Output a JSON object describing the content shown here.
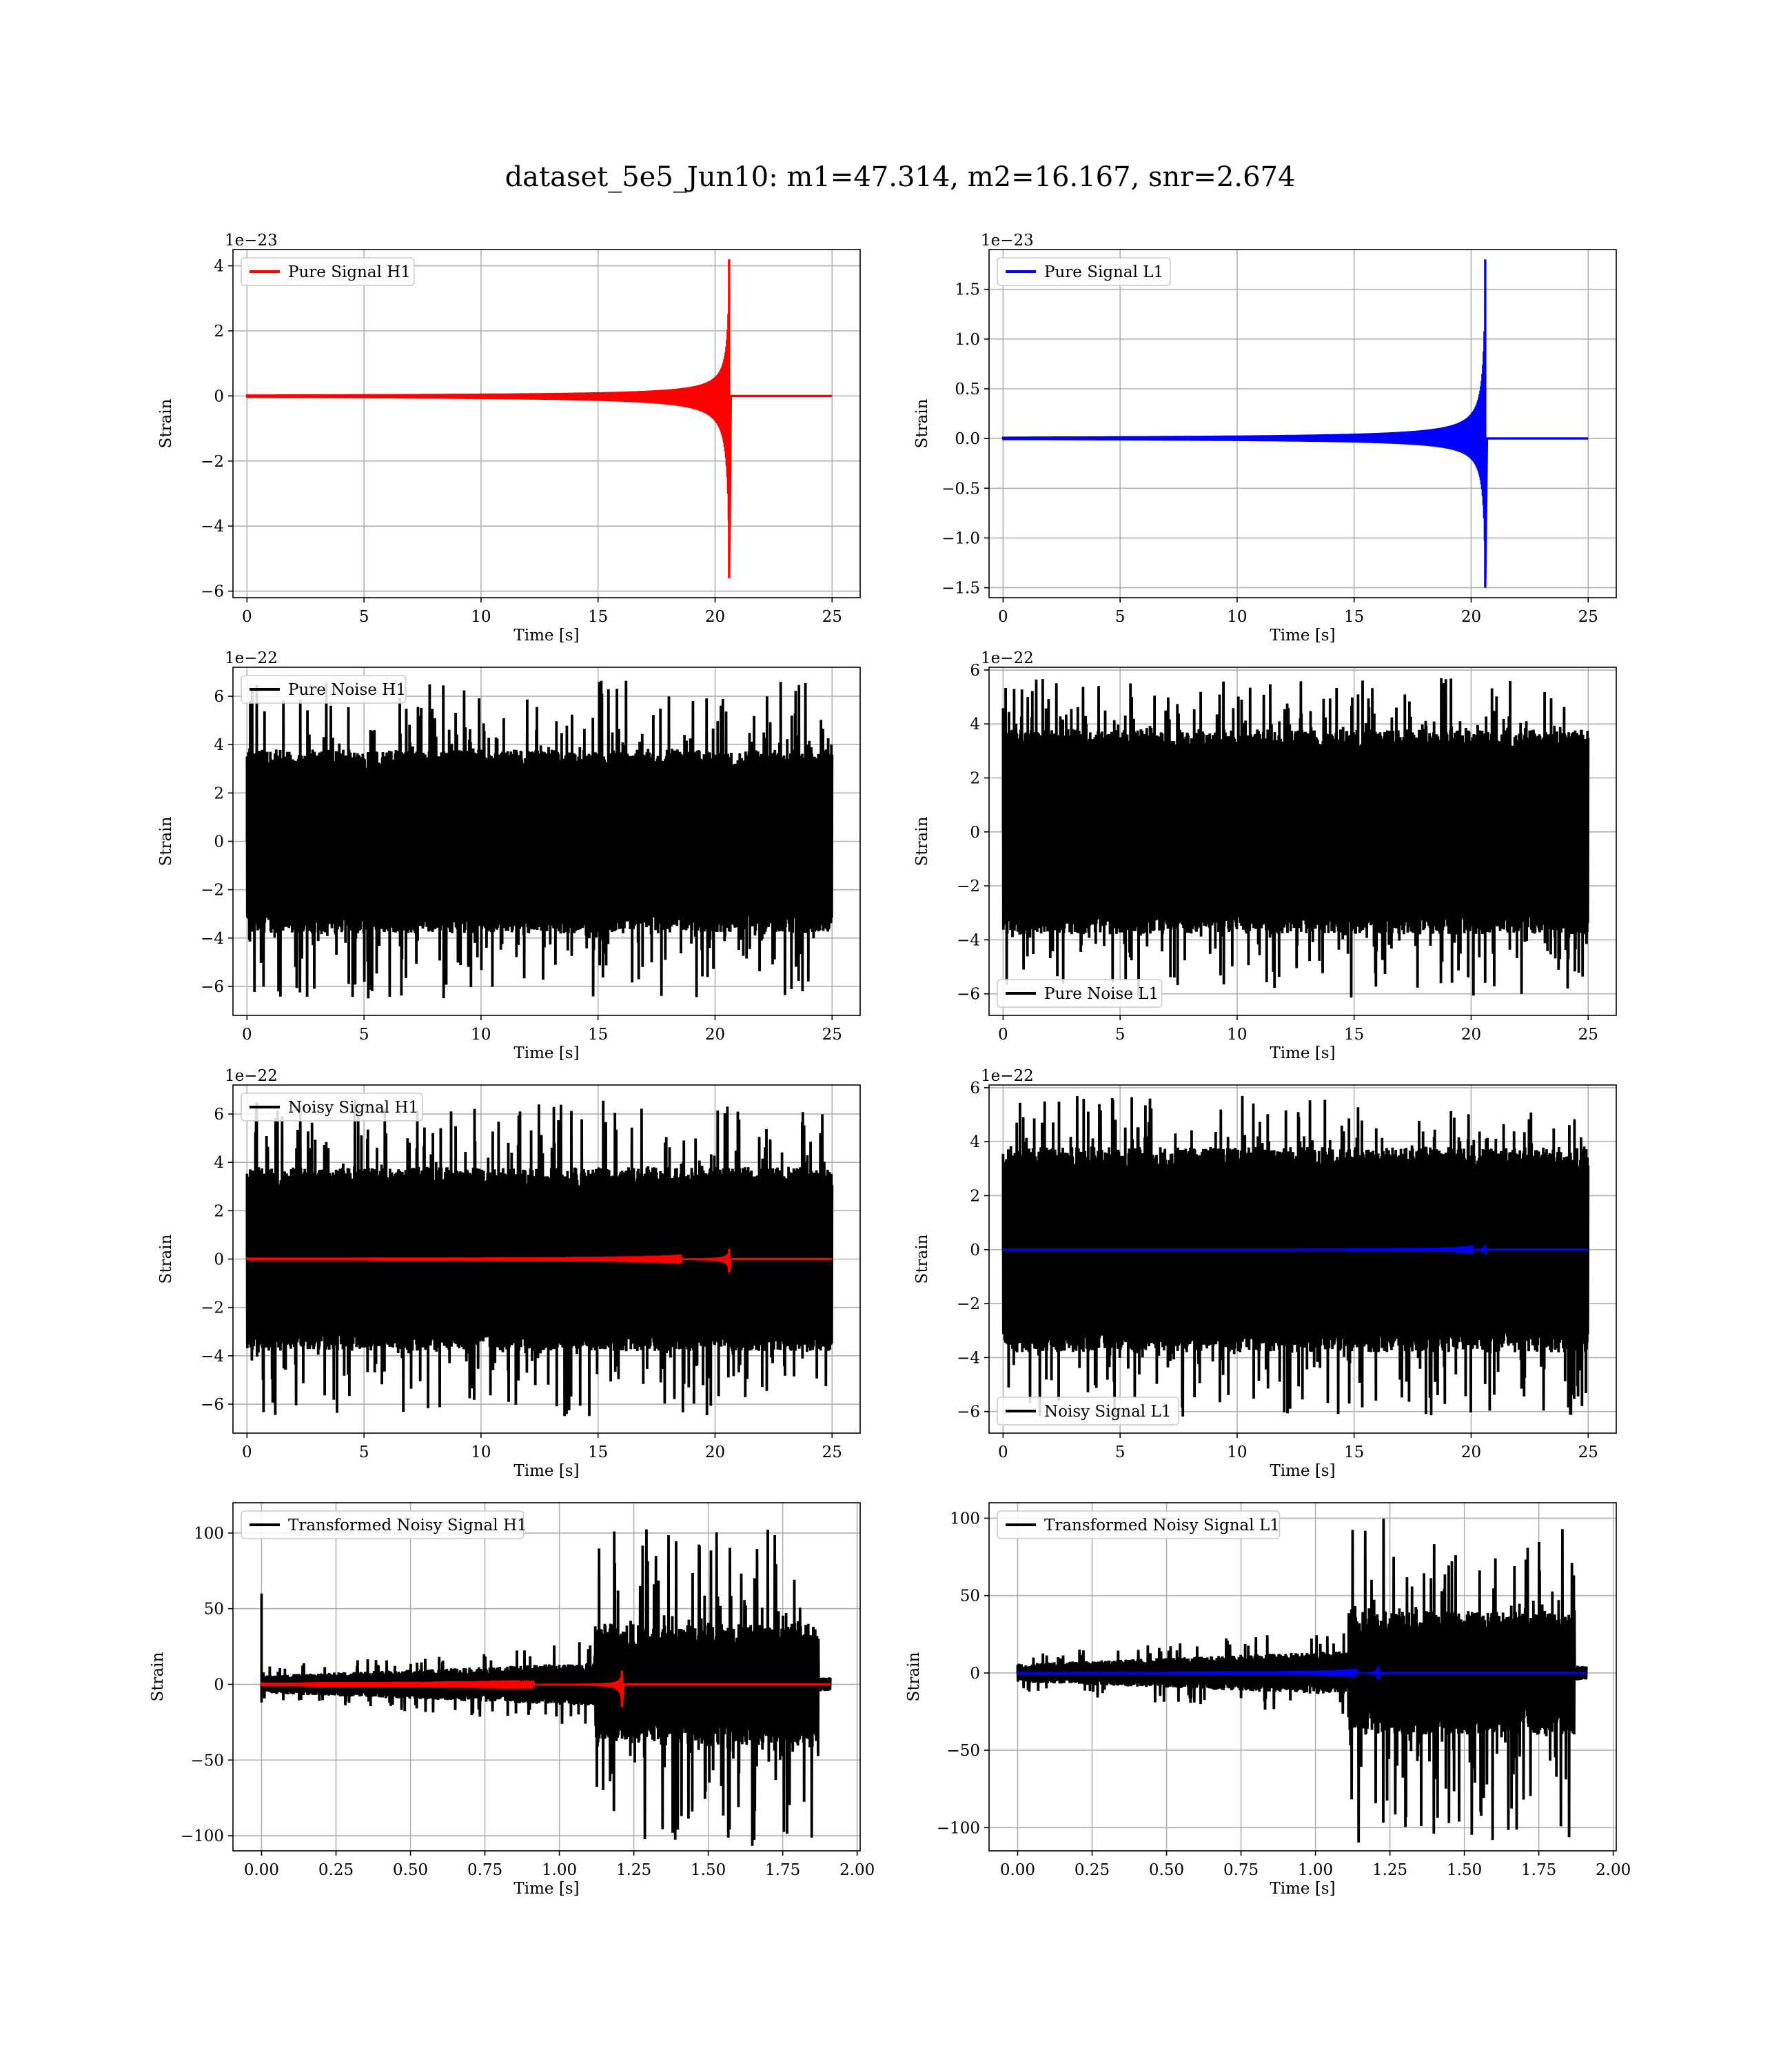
{
  "title": "dataset_5e5_Jun10: m1=47.314, m2=16.167, snr=2.674",
  "chart_data": [
    {
      "type": "line",
      "panel": "pure_signal_h1",
      "xlabel": "Time [s]",
      "ylabel": "Strain",
      "offset_label": "1e−23",
      "xlim": [
        -0.6,
        26.2
      ],
      "ylim": [
        -6.2,
        4.5
      ],
      "xticks": [
        0,
        5,
        10,
        15,
        20,
        25
      ],
      "xtick_labels": [
        "0",
        "5",
        "10",
        "15",
        "20",
        "25"
      ],
      "yticks": [
        -6,
        -4,
        -2,
        0,
        2,
        4
      ],
      "ytick_labels": [
        "−6",
        "−4",
        "−2",
        "0",
        "2",
        "4"
      ],
      "grid": true,
      "legend_position": "upper-left",
      "series": [
        {
          "name": "Pure Signal H1",
          "color": "#ff0000",
          "kind": "chirp",
          "t_start": 0,
          "t_end": 25,
          "t_merger": 20.6,
          "peak_max": 4.2,
          "peak_min": -5.6
        }
      ]
    },
    {
      "type": "line",
      "panel": "pure_signal_l1",
      "xlabel": "Time [s]",
      "ylabel": "Strain",
      "offset_label": "1e−23",
      "xlim": [
        -0.6,
        26.2
      ],
      "ylim": [
        -1.6,
        1.9
      ],
      "xticks": [
        0,
        5,
        10,
        15,
        20,
        25
      ],
      "xtick_labels": [
        "0",
        "5",
        "10",
        "15",
        "20",
        "25"
      ],
      "yticks": [
        -1.5,
        -1.0,
        -0.5,
        0.0,
        0.5,
        1.0,
        1.5
      ],
      "ytick_labels": [
        "−1.5",
        "−1.0",
        "−0.5",
        "0.0",
        "0.5",
        "1.0",
        "1.5"
      ],
      "grid": true,
      "legend_position": "upper-left",
      "series": [
        {
          "name": "Pure Signal L1",
          "color": "#0000ff",
          "kind": "chirp",
          "t_start": 0,
          "t_end": 25,
          "t_merger": 20.6,
          "peak_max": 1.8,
          "peak_min": -1.5
        }
      ]
    },
    {
      "type": "line",
      "panel": "pure_noise_h1",
      "xlabel": "Time [s]",
      "ylabel": "Strain",
      "offset_label": "1e−22",
      "xlim": [
        -0.6,
        26.2
      ],
      "ylim": [
        -7.2,
        7.2
      ],
      "xticks": [
        0,
        5,
        10,
        15,
        20,
        25
      ],
      "xtick_labels": [
        "0",
        "5",
        "10",
        "15",
        "20",
        "25"
      ],
      "yticks": [
        -6,
        -4,
        -2,
        0,
        2,
        4,
        6
      ],
      "ytick_labels": [
        "−6",
        "−4",
        "−2",
        "0",
        "2",
        "4",
        "6"
      ],
      "grid": true,
      "legend_position": "upper-left",
      "series": [
        {
          "name": "Pure Noise H1",
          "color": "#000000",
          "kind": "noise",
          "t_start": 0,
          "t_end": 25,
          "band_max": 3.8,
          "band_min": -3.8,
          "peak_max": 6.7,
          "peak_min": -6.5
        }
      ]
    },
    {
      "type": "line",
      "panel": "pure_noise_l1",
      "xlabel": "Time [s]",
      "ylabel": "Strain",
      "offset_label": "1e−22",
      "xlim": [
        -0.6,
        26.2
      ],
      "ylim": [
        -6.8,
        6.1
      ],
      "xticks": [
        0,
        5,
        10,
        15,
        20,
        25
      ],
      "xtick_labels": [
        "0",
        "5",
        "10",
        "15",
        "20",
        "25"
      ],
      "yticks": [
        -6,
        -4,
        -2,
        0,
        2,
        4,
        6
      ],
      "ytick_labels": [
        "−6",
        "−4",
        "−2",
        "0",
        "2",
        "4",
        "6"
      ],
      "grid": true,
      "legend_position": "lower-left",
      "series": [
        {
          "name": "Pure Noise L1",
          "color": "#000000",
          "kind": "noise",
          "t_start": 0,
          "t_end": 25,
          "band_max": 3.8,
          "band_min": -3.8,
          "peak_max": 5.7,
          "peak_min": -6.2
        }
      ]
    },
    {
      "type": "line",
      "panel": "noisy_signal_h1",
      "xlabel": "Time [s]",
      "ylabel": "Strain",
      "offset_label": "1e−22",
      "xlim": [
        -0.6,
        26.2
      ],
      "ylim": [
        -7.2,
        7.2
      ],
      "xticks": [
        0,
        5,
        10,
        15,
        20,
        25
      ],
      "xtick_labels": [
        "0",
        "5",
        "10",
        "15",
        "20",
        "25"
      ],
      "yticks": [
        -6,
        -4,
        -2,
        0,
        2,
        4,
        6
      ],
      "ytick_labels": [
        "−6",
        "−4",
        "−2",
        "0",
        "2",
        "4",
        "6"
      ],
      "grid": true,
      "legend_position": "upper-left",
      "series": [
        {
          "name": "Noisy Signal H1",
          "color": "#000000",
          "kind": "noise",
          "t_start": 0,
          "t_end": 25,
          "band_max": 3.8,
          "band_min": -3.8,
          "peak_max": 6.7,
          "peak_min": -6.5
        },
        {
          "name": "",
          "color": "#ff0000",
          "kind": "chirp",
          "t_start": 0,
          "t_end": 25,
          "t_merger": 20.6,
          "peak_max": 0.42,
          "peak_min": -0.56
        }
      ]
    },
    {
      "type": "line",
      "panel": "noisy_signal_l1",
      "xlabel": "Time [s]",
      "ylabel": "Strain",
      "offset_label": "1e−22",
      "xlim": [
        -0.6,
        26.2
      ],
      "ylim": [
        -6.8,
        6.1
      ],
      "xticks": [
        0,
        5,
        10,
        15,
        20,
        25
      ],
      "xtick_labels": [
        "0",
        "5",
        "10",
        "15",
        "20",
        "25"
      ],
      "yticks": [
        -6,
        -4,
        -2,
        0,
        2,
        4,
        6
      ],
      "ytick_labels": [
        "−6",
        "−4",
        "−2",
        "0",
        "2",
        "4",
        "6"
      ],
      "grid": true,
      "legend_position": "lower-left",
      "series": [
        {
          "name": "Noisy Signal L1",
          "color": "#000000",
          "kind": "noise",
          "t_start": 0,
          "t_end": 25,
          "band_max": 3.8,
          "band_min": -3.8,
          "peak_max": 5.7,
          "peak_min": -6.2
        },
        {
          "name": "",
          "color": "#0000ff",
          "kind": "chirp",
          "t_start": 0,
          "t_end": 25,
          "t_merger": 20.6,
          "peak_max": 0.18,
          "peak_min": -0.15
        }
      ]
    },
    {
      "type": "line",
      "panel": "transformed_h1",
      "xlabel": "Time [s]",
      "ylabel": "Strain",
      "offset_label": "",
      "xlim": [
        -0.096,
        2.01
      ],
      "ylim": [
        -110,
        120
      ],
      "xticks": [
        0.0,
        0.25,
        0.5,
        0.75,
        1.0,
        1.25,
        1.5,
        1.75,
        2.0
      ],
      "xtick_labels": [
        "0.00",
        "0.25",
        "0.50",
        "0.75",
        "1.00",
        "1.25",
        "1.50",
        "1.75",
        "2.00"
      ],
      "yticks": [
        -100,
        -50,
        0,
        50,
        100
      ],
      "ytick_labels": [
        "−100",
        "−50",
        "0",
        "50",
        "100"
      ],
      "grid": true,
      "legend_position": "upper-left",
      "series": [
        {
          "name": "Transformed Noisy Signal H1",
          "color": "#000000",
          "kind": "transformed",
          "t_start": 0,
          "t_end": 1.91,
          "t_jump": 1.12,
          "t_drop": 1.87,
          "low_band": 6,
          "high_band": 40,
          "peak_max": 108,
          "peak_min": -107,
          "spike_at_zero": 60
        },
        {
          "name": "",
          "color": "#ff0000",
          "kind": "chirp",
          "t_start": 0,
          "t_end": 1.91,
          "t_merger": 1.21,
          "peak_max": 9,
          "peak_min": -15
        }
      ]
    },
    {
      "type": "line",
      "panel": "transformed_l1",
      "xlabel": "Time [s]",
      "ylabel": "Strain",
      "offset_label": "",
      "xlim": [
        -0.096,
        2.01
      ],
      "ylim": [
        -115,
        110
      ],
      "xticks": [
        0.0,
        0.25,
        0.5,
        0.75,
        1.0,
        1.25,
        1.5,
        1.75,
        2.0
      ],
      "xtick_labels": [
        "0.00",
        "0.25",
        "0.50",
        "0.75",
        "1.00",
        "1.25",
        "1.50",
        "1.75",
        "2.00"
      ],
      "yticks": [
        -100,
        -50,
        0,
        50,
        100
      ],
      "ytick_labels": [
        "−100",
        "−50",
        "0",
        "50",
        "100"
      ],
      "grid": true,
      "legend_position": "upper-left",
      "series": [
        {
          "name": "Transformed Noisy Signal L1",
          "color": "#000000",
          "kind": "transformed",
          "t_start": 0,
          "t_end": 1.91,
          "t_jump": 1.11,
          "t_drop": 1.87,
          "low_band": 6,
          "high_band": 40,
          "peak_max": 102,
          "peak_min": -110,
          "spike_at_zero": 0
        },
        {
          "name": "",
          "color": "#0000ff",
          "kind": "chirp",
          "t_start": 0,
          "t_end": 1.91,
          "t_merger": 1.21,
          "peak_max": 4,
          "peak_min": -4
        }
      ]
    }
  ]
}
